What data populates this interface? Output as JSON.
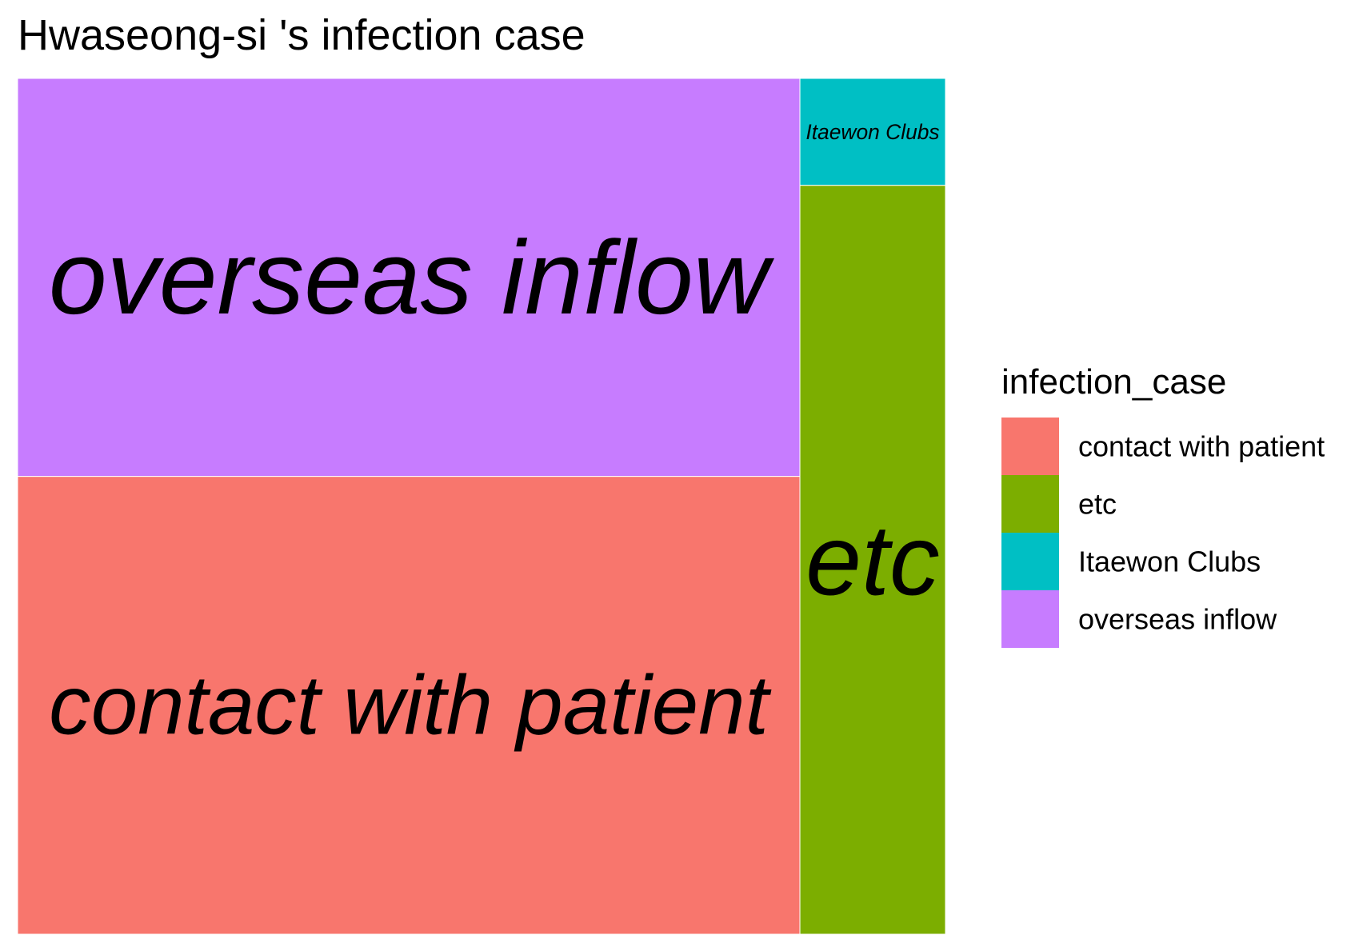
{
  "chart_data": {
    "type": "treemap",
    "title": "Hwaseong-si 's infection case",
    "legend": {
      "title": "infection_case",
      "position": "right"
    },
    "categories": [
      "contact with patient",
      "etc",
      "Itaewon Clubs",
      "overseas inflow"
    ],
    "colors": {
      "contact with patient": "#F8766D",
      "etc": "#7CAE00",
      "Itaewon Clubs": "#00BFC4",
      "overseas inflow": "#C77CFF"
    },
    "values": {
      "contact with patient": 23,
      "overseas inflow": 20,
      "etc": 7,
      "Itaewon Clubs": 1
    }
  }
}
